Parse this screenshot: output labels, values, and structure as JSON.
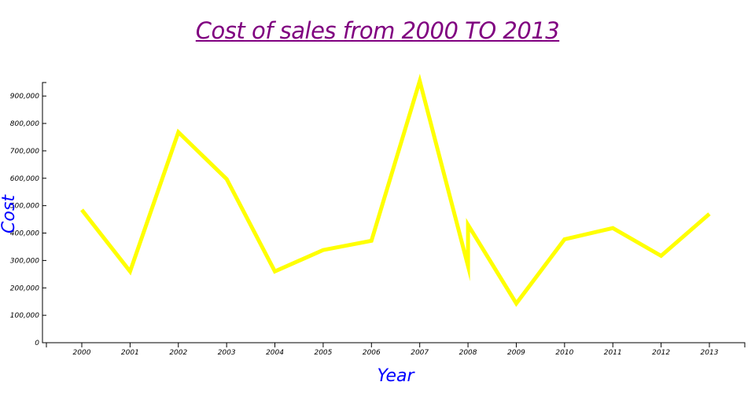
{
  "colors": {
    "title": "#800080",
    "axis_label": "#0000ff",
    "line": "#ffff00",
    "axis": "#000000",
    "background": "#ffffff"
  },
  "chart_data": {
    "type": "line",
    "title": "Cost of sales from 2000 TO 2013",
    "xlabel": "Year",
    "ylabel": "Cost",
    "x_ticks": [
      "2000",
      "2001",
      "2002",
      "2003",
      "2004",
      "2005",
      "2006",
      "2007",
      "2008",
      "2009",
      "2010",
      "2011",
      "2012",
      "2013"
    ],
    "y_ticks": [
      "0",
      "100,000",
      "200,000",
      "300,000",
      "400,000",
      "500,000",
      "600,000",
      "700,000",
      "800,000",
      "900,000"
    ],
    "ylim": [
      0,
      955000
    ],
    "xlim": [
      "2000",
      "2013"
    ],
    "grid": false,
    "series": [
      {
        "points": [
          {
            "x": "2000",
            "y": 485000
          },
          {
            "x": "2001",
            "y": 260000
          },
          {
            "x": "2002",
            "y": 768000
          },
          {
            "x": "2003",
            "y": 597000
          },
          {
            "x": "2004",
            "y": 260000
          },
          {
            "x": "2005",
            "y": 338000
          },
          {
            "x": "2006",
            "y": 372000
          },
          {
            "x": "2007",
            "y": 955000
          },
          {
            "x": "2008",
            "y": 280000
          },
          {
            "x": "2008",
            "y": 430000
          },
          {
            "x": "2009",
            "y": 143000
          },
          {
            "x": "2010",
            "y": 377000
          },
          {
            "x": "2011",
            "y": 418000
          },
          {
            "x": "2012",
            "y": 317000
          },
          {
            "x": "2013",
            "y": 470000
          }
        ]
      }
    ]
  }
}
